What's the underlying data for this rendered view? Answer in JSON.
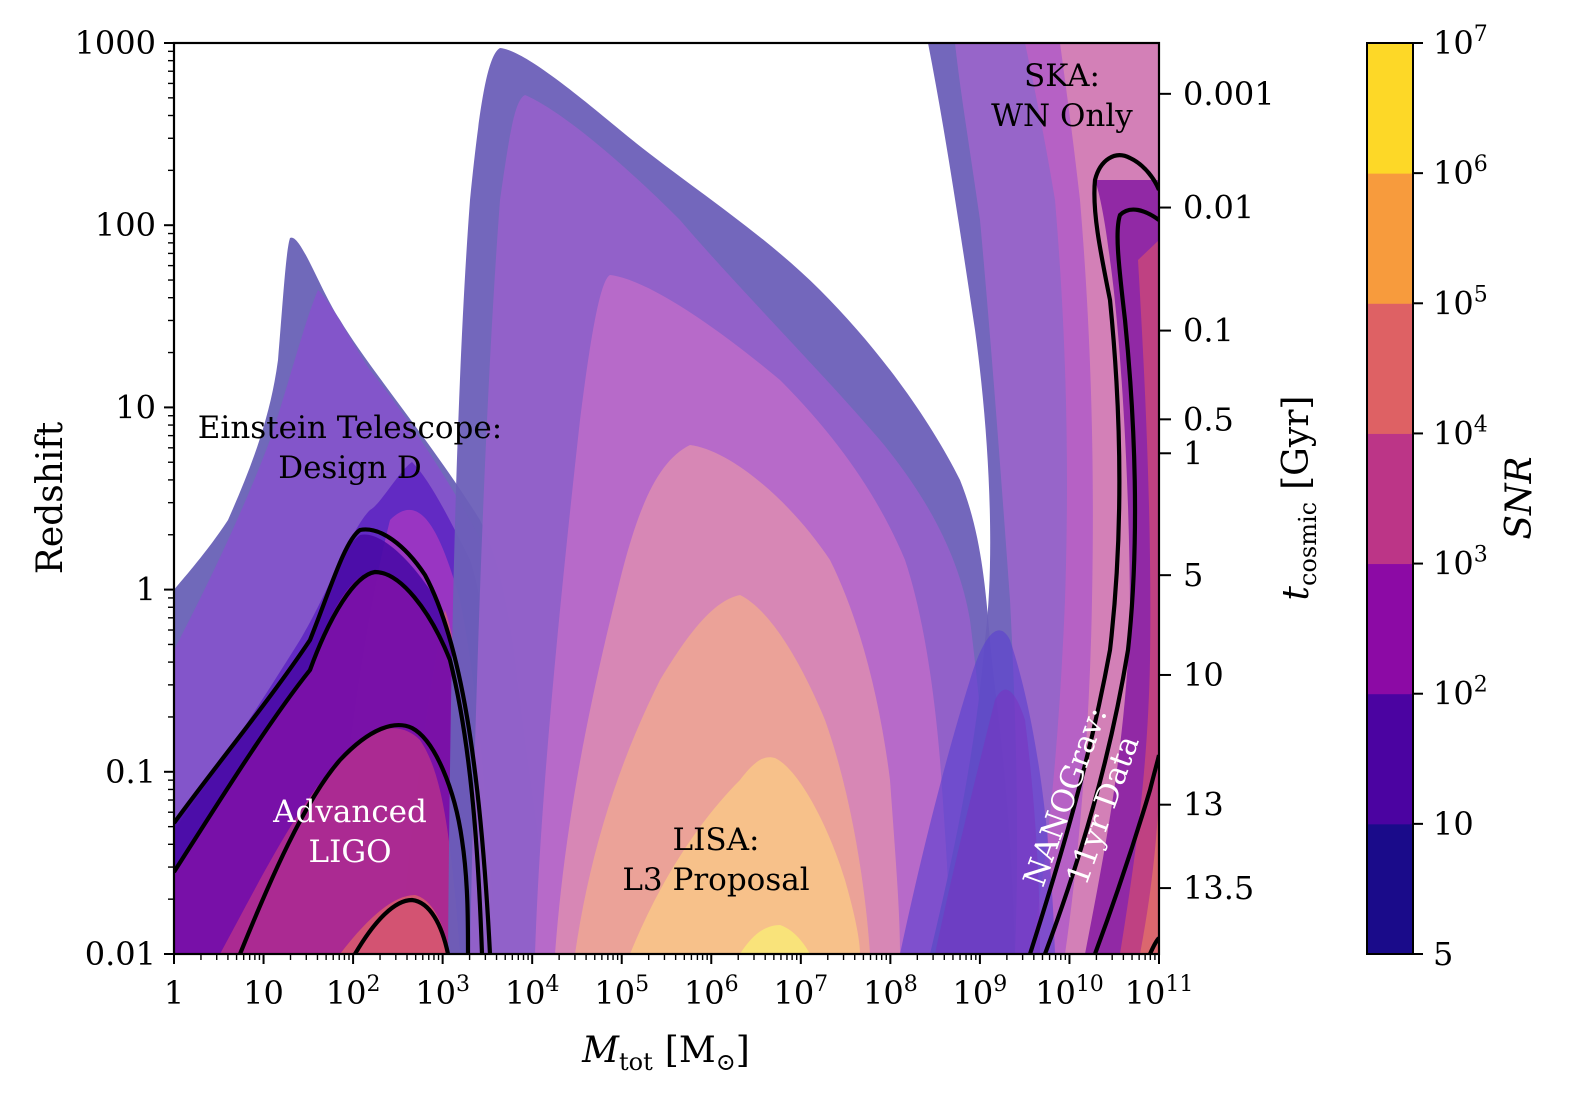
{
  "chart_data": {
    "type": "contour",
    "xlabel": "M_tot [M_⊙]",
    "xlabel_main": "M",
    "xlabel_sub": "tot",
    "xlabel_unit": "[M",
    "xlabel_unit_sub": "⊙",
    "xlabel_unit_close": "]",
    "ylabel": "Redshift",
    "ylabel_right": "t_cosmic [Gyr]",
    "ylabel_right_main": "t",
    "ylabel_right_sub": "cosmic",
    "ylabel_right_unit": "[Gyr]",
    "colorbar_label": "SNR",
    "x_scale": "log",
    "y_scale": "log",
    "xlim": [
      1,
      100000000000
    ],
    "ylim": [
      0.01,
      1000
    ],
    "x_ticks": [
      {
        "value": 1,
        "label": "1"
      },
      {
        "value": 10,
        "label": "10"
      },
      {
        "value": 100,
        "base": "10",
        "exp": "2"
      },
      {
        "value": 1000,
        "base": "10",
        "exp": "3"
      },
      {
        "value": 10000,
        "base": "10",
        "exp": "4"
      },
      {
        "value": 100000,
        "base": "10",
        "exp": "5"
      },
      {
        "value": 1000000,
        "base": "10",
        "exp": "6"
      },
      {
        "value": 10000000,
        "base": "10",
        "exp": "7"
      },
      {
        "value": 100000000,
        "base": "10",
        "exp": "8"
      },
      {
        "value": 1000000000,
        "base": "10",
        "exp": "9"
      },
      {
        "value": 10000000000,
        "base": "10",
        "exp": "10"
      },
      {
        "value": 100000000000,
        "base": "10",
        "exp": "11"
      }
    ],
    "y_ticks": [
      {
        "value": 0.01,
        "label": "0.01"
      },
      {
        "value": 0.1,
        "label": "0.1"
      },
      {
        "value": 1,
        "label": "1"
      },
      {
        "value": 10,
        "label": "10"
      },
      {
        "value": 100,
        "label": "100"
      },
      {
        "value": 1000,
        "label": "1000"
      }
    ],
    "right_ticks": [
      {
        "z": 526,
        "label": "0.001"
      },
      {
        "z": 125,
        "label": "0.01"
      },
      {
        "z": 26.4,
        "label": "0.1"
      },
      {
        "z": 8.6,
        "label": "0.5"
      },
      {
        "z": 5.6,
        "label": "1"
      },
      {
        "z": 1.2,
        "label": "5"
      },
      {
        "z": 0.34,
        "label": "10"
      },
      {
        "z": 0.066,
        "label": "13"
      },
      {
        "z": 0.023,
        "label": "13.5"
      }
    ],
    "colorbar": {
      "levels": [
        5,
        10,
        100,
        1000,
        10000,
        100000,
        1000000,
        10000000
      ],
      "tick_labels": [
        {
          "value": 5,
          "label": "5"
        },
        {
          "value": 10,
          "label": "10"
        },
        {
          "value": 100,
          "base": "10",
          "exp": "2"
        },
        {
          "value": 1000,
          "base": "10",
          "exp": "3"
        },
        {
          "value": 10000,
          "base": "10",
          "exp": "4"
        },
        {
          "value": 100000,
          "base": "10",
          "exp": "5"
        },
        {
          "value": 1000000,
          "base": "10",
          "exp": "6"
        },
        {
          "value": 10000000,
          "base": "10",
          "exp": "7"
        }
      ],
      "colors": [
        "#1a0b8a",
        "#4b03a1",
        "#8c0aa5",
        "#bc3587",
        "#de6164",
        "#f79b3d",
        "#fdd827"
      ]
    },
    "detectors": [
      {
        "name": "Einstein Telescope: Design D",
        "label_lines": [
          "Einstein Telescope:",
          "Design D"
        ],
        "peak_mass": 25,
        "peak_z": 85
      },
      {
        "name": "Advanced LIGO",
        "label_lines": [
          "Advanced",
          "LIGO"
        ],
        "peak_mass": 140,
        "peak_z": 2.2
      },
      {
        "name": "LISA: L3 Proposal",
        "label_lines": [
          "LISA:",
          "L3 Proposal"
        ],
        "peak_mass": 4500,
        "peak_z": 950
      },
      {
        "name": "SKA: WN Only",
        "label_lines": [
          "SKA:",
          "WN Only"
        ]
      },
      {
        "name": "NANOGrav: 11yr Data",
        "label_lines": [
          "NANOGrav:",
          "11yr Data"
        ]
      }
    ]
  }
}
